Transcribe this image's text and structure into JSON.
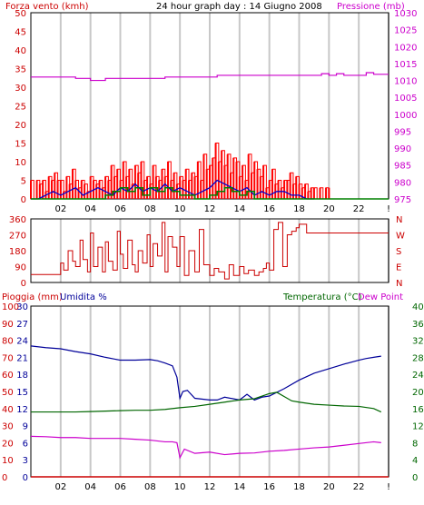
{
  "header": {
    "left_title": "Forza vento (kmh)",
    "center_title": "24 hour graph day : 14 Giugno 2008",
    "right_title": "Pressione (mb)"
  },
  "colors": {
    "frame": "#000000",
    "grid": "#c8c8c8",
    "wind_speed": "#ff0000",
    "wind_gust": "#0000cc",
    "wind_avg": "#008000",
    "pressure": "#cc00cc",
    "direction": "#cc0000",
    "humidity": "#000099",
    "temperature": "#006600",
    "dew_point": "#cc00cc",
    "rain": "#cc0000",
    "label_red": "#cc0000",
    "label_green": "#006600",
    "label_blue": "#000099",
    "label_magenta": "#cc00cc"
  },
  "lower_labels": {
    "rain": "Pioggia (mm)",
    "humidity": "Umidita %",
    "temperature": "Temperatura (°C)",
    "dew_point": "Dew Point"
  },
  "chart_data": [
    {
      "type": "bar",
      "title": "24 hour graph day : 14 Giugno 2008",
      "ylabel": "Forza vento (kmh)",
      "y2label": "Pressione (mb)",
      "ylim": [
        0,
        50
      ],
      "y2lim": [
        975,
        1030
      ],
      "xlim": [
        0,
        24
      ],
      "x_ticks": [
        "02",
        "04",
        "06",
        "08",
        "10",
        "12",
        "14",
        "16",
        "18",
        "20",
        "22",
        "!"
      ],
      "y_ticks": [
        "0",
        "5",
        "10",
        "15",
        "20",
        "25",
        "30",
        "35",
        "40",
        "45",
        "50"
      ],
      "y2_ticks": [
        "975",
        "980",
        "985",
        "990",
        "995",
        "1000",
        "1005",
        "1010",
        "1015",
        "1020",
        "1025",
        "1030"
      ],
      "grid": true,
      "series": [
        {
          "name": "wind_speed",
          "x": [
            0.0,
            0.2,
            0.4,
            0.6,
            0.8,
            1.0,
            1.2,
            1.4,
            1.6,
            1.8,
            2.0,
            2.2,
            2.4,
            2.6,
            2.8,
            3.0,
            3.2,
            3.4,
            3.6,
            3.8,
            4.0,
            4.2,
            4.4,
            4.6,
            4.8,
            5.0,
            5.2,
            5.4,
            5.6,
            5.8,
            6.0,
            6.2,
            6.4,
            6.6,
            6.8,
            7.0,
            7.2,
            7.4,
            7.6,
            7.8,
            8.0,
            8.2,
            8.4,
            8.6,
            8.8,
            9.0,
            9.2,
            9.4,
            9.6,
            9.8,
            10.0,
            10.2,
            10.4,
            10.6,
            10.8,
            11.0,
            11.2,
            11.4,
            11.6,
            11.8,
            12.0,
            12.2,
            12.4,
            12.6,
            12.8,
            13.0,
            13.2,
            13.4,
            13.6,
            13.8,
            14.0,
            14.2,
            14.4,
            14.6,
            14.8,
            15.0,
            15.2,
            15.4,
            15.6,
            15.8,
            16.0,
            16.2,
            16.4,
            16.6,
            16.8,
            17.0,
            17.2,
            17.4,
            17.6,
            17.8,
            18.0,
            18.2,
            18.4,
            18.6,
            18.8,
            19.0,
            19.2,
            19.4,
            19.6,
            19.8,
            20.0
          ],
          "values": [
            5,
            0,
            5,
            4,
            5,
            2,
            6,
            5,
            7,
            5,
            5,
            2,
            6,
            4,
            8,
            5,
            3,
            5,
            4,
            2,
            6,
            5,
            4,
            5,
            3,
            6,
            5,
            9,
            6,
            8,
            5,
            10,
            6,
            8,
            4,
            9,
            7,
            10,
            5,
            6,
            4,
            9,
            6,
            5,
            8,
            6,
            10,
            5,
            7,
            4,
            6,
            5,
            8,
            5,
            7,
            6,
            10,
            5,
            12,
            8,
            9,
            11,
            15,
            10,
            13,
            9,
            12,
            7,
            11,
            10,
            6,
            9,
            5,
            12,
            7,
            10,
            8,
            6,
            9,
            3,
            5,
            8,
            4,
            5,
            3,
            5,
            5,
            7,
            4,
            6,
            4,
            3,
            4,
            2,
            3,
            3,
            0,
            3,
            0,
            3,
            3
          ]
        },
        {
          "name": "wind_gust",
          "x": [
            0.0,
            0.5,
            1.0,
            1.5,
            2.0,
            2.5,
            3.0,
            3.5,
            4.0,
            4.5,
            5.0,
            5.5,
            6.0,
            6.5,
            7.0,
            7.5,
            8.0,
            8.5,
            9.0,
            9.5,
            10.0,
            10.5,
            11.0,
            11.5,
            12.0,
            12.5,
            13.0,
            13.5,
            14.0,
            14.5,
            15.0,
            15.5,
            16.0,
            16.5,
            17.0,
            17.5,
            18.0,
            18.5,
            19.0
          ],
          "values": [
            0,
            0,
            1,
            2,
            1,
            2,
            3,
            1,
            2,
            3,
            2,
            1,
            3,
            2,
            4,
            2,
            3,
            2,
            4,
            2,
            3,
            2,
            1,
            2,
            3,
            5,
            4,
            3,
            2,
            3,
            1,
            2,
            1,
            2,
            2,
            1,
            1,
            0,
            0
          ]
        },
        {
          "name": "wind_avg",
          "x": [
            0.0,
            1.0,
            2.0,
            3.0,
            4.0,
            5.0,
            5.5,
            6.0,
            6.5,
            7.0,
            7.5,
            8.0,
            8.5,
            9.0,
            9.5,
            10.0,
            11.0,
            12.0,
            12.5,
            13.0,
            13.5,
            14.0,
            14.5,
            15.0,
            16.0,
            17.0,
            18.0,
            19.0,
            20.0,
            21.0,
            22.0,
            23.0,
            24.0
          ],
          "values": [
            0,
            0,
            0,
            0,
            0,
            1,
            2,
            3,
            2,
            3,
            1,
            3,
            2,
            3,
            2,
            1,
            0,
            1,
            2,
            3,
            2,
            1,
            2,
            0,
            0,
            0,
            0,
            0,
            0,
            0,
            0,
            0,
            0
          ]
        },
        {
          "name": "pressure",
          "axis": "y2",
          "x": [
            0,
            1,
            2,
            3,
            4,
            4.5,
            5,
            6,
            7,
            8,
            9,
            10,
            11,
            12,
            12.5,
            13,
            14,
            15,
            16,
            17,
            18,
            19,
            19.5,
            20,
            20.5,
            21,
            22,
            22.5,
            23,
            24
          ],
          "values": [
            1011,
            1011,
            1011,
            1010.6,
            1010,
            1010,
            1010.6,
            1010.6,
            1010.6,
            1010.6,
            1011,
            1011,
            1011,
            1011,
            1011.5,
            1011.5,
            1011.5,
            1011.5,
            1011.5,
            1011.5,
            1011.5,
            1011.5,
            1012,
            1011.5,
            1012,
            1011.5,
            1011.5,
            1012.3,
            1011.8,
            1011.8
          ]
        }
      ]
    },
    {
      "type": "line",
      "ylabel": "",
      "ylim": [
        0,
        360
      ],
      "xlim": [
        0,
        24
      ],
      "y_ticks": [
        "0",
        "90",
        "180",
        "270",
        "360"
      ],
      "y2_ticks": [
        "N",
        "E",
        "S",
        "W",
        "N"
      ],
      "grid": true,
      "series": [
        {
          "name": "wind_direction",
          "x": [
            0,
            1.8,
            2.0,
            2.2,
            2.5,
            2.8,
            3.0,
            3.3,
            3.5,
            3.8,
            4.0,
            4.2,
            4.5,
            4.8,
            5.0,
            5.2,
            5.5,
            5.8,
            6.0,
            6.2,
            6.5,
            6.8,
            7.0,
            7.2,
            7.5,
            7.8,
            8.0,
            8.2,
            8.5,
            8.8,
            9.0,
            9.2,
            9.5,
            9.8,
            10.0,
            10.3,
            10.6,
            11.0,
            11.3,
            11.6,
            12.0,
            12.3,
            12.6,
            13.0,
            13.3,
            13.6,
            14.0,
            14.3,
            14.6,
            15.0,
            15.3,
            15.6,
            15.8,
            16.0,
            16.3,
            16.6,
            16.9,
            17.2,
            17.5,
            17.8,
            18.0,
            18.5,
            19.0,
            20,
            21,
            22,
            23,
            24
          ],
          "values": [
            45,
            45,
            110,
            70,
            180,
            120,
            90,
            240,
            130,
            60,
            280,
            90,
            200,
            60,
            230,
            120,
            70,
            290,
            160,
            80,
            240,
            100,
            60,
            180,
            110,
            270,
            90,
            220,
            150,
            340,
            60,
            260,
            200,
            90,
            260,
            40,
            180,
            60,
            300,
            100,
            40,
            80,
            60,
            20,
            100,
            40,
            90,
            50,
            70,
            40,
            60,
            80,
            110,
            70,
            300,
            340,
            90,
            270,
            290,
            310,
            330,
            280,
            280,
            280,
            280,
            280,
            280,
            280
          ]
        }
      ]
    },
    {
      "type": "line",
      "title": "",
      "ylabel": "Pioggia (mm) / Umidita %",
      "y2label": "Temperatura (°C) / Dew Point",
      "xlim": [
        0,
        24
      ],
      "x_ticks": [
        "02",
        "04",
        "06",
        "08",
        "10",
        "12",
        "14",
        "16",
        "18",
        "20",
        "22",
        "!"
      ],
      "rain_ticks": [
        "0",
        "10",
        "20",
        "30",
        "40",
        "50",
        "60",
        "70",
        "80",
        "90",
        "100"
      ],
      "humidity_ticks": [
        "0",
        "3",
        "6",
        "9",
        "12",
        "15",
        "18",
        "21",
        "24",
        "27",
        "30"
      ],
      "temp_ticks": [
        "0",
        "4",
        "8",
        "12",
        "16",
        "20",
        "24",
        "28",
        "32",
        "36",
        "40"
      ],
      "humidity_ylim": [
        0,
        30
      ],
      "temp_ylim": [
        0,
        40
      ],
      "grid": true,
      "series": [
        {
          "name": "Umidita %",
          "axis": "humidity",
          "x": [
            0,
            1,
            2,
            3,
            4,
            5,
            6,
            7,
            8,
            8.5,
            9,
            9.5,
            9.8,
            10.0,
            10.2,
            10.5,
            11,
            12,
            12.5,
            13,
            14,
            14.5,
            15,
            15.5,
            16,
            17,
            18,
            19,
            20,
            21,
            22,
            22.5,
            23,
            23.5
          ],
          "values": [
            23,
            22.7,
            22.5,
            22,
            21.6,
            21,
            20.5,
            20.5,
            20.6,
            20.4,
            20,
            19.5,
            17.5,
            13.8,
            15,
            15.2,
            13.8,
            13.5,
            13.5,
            14,
            13.5,
            14.5,
            13.5,
            14,
            14.2,
            15.5,
            17,
            18.2,
            19,
            19.8,
            20.5,
            20.8,
            21,
            21.2
          ]
        },
        {
          "name": "Temperatura (°C)",
          "axis": "temp",
          "x": [
            0,
            1,
            2,
            3,
            4,
            5,
            6,
            7,
            8,
            9,
            10,
            11,
            12,
            13,
            14,
            15,
            16,
            16.5,
            17,
            17.5,
            18,
            19,
            20,
            21,
            22,
            23,
            23.5
          ],
          "values": [
            15.2,
            15.2,
            15.2,
            15.2,
            15.3,
            15.4,
            15.5,
            15.6,
            15.6,
            15.8,
            16.2,
            16.5,
            17,
            17.5,
            18,
            18.3,
            19.5,
            19.8,
            18.8,
            17.8,
            17.5,
            17,
            16.8,
            16.6,
            16.5,
            16,
            15.2
          ]
        },
        {
          "name": "Dew Point",
          "axis": "temp",
          "x": [
            0,
            1,
            2,
            3,
            4,
            5,
            6,
            7,
            8,
            9,
            9.5,
            9.8,
            10.0,
            10.3,
            11,
            12,
            13,
            14,
            15,
            16,
            17,
            18,
            19,
            20,
            21,
            22,
            23,
            23.5
          ],
          "values": [
            9.5,
            9.4,
            9.2,
            9.2,
            9,
            9,
            9,
            8.8,
            8.6,
            8.2,
            8.2,
            8.0,
            4.5,
            6.5,
            5.5,
            5.8,
            5.2,
            5.5,
            5.6,
            6,
            6.2,
            6.5,
            6.8,
            7,
            7.4,
            7.8,
            8.2,
            8
          ]
        },
        {
          "name": "Pioggia (mm)",
          "axis": "rain",
          "x": [
            0,
            24
          ],
          "values": [
            0,
            0
          ]
        }
      ]
    }
  ]
}
